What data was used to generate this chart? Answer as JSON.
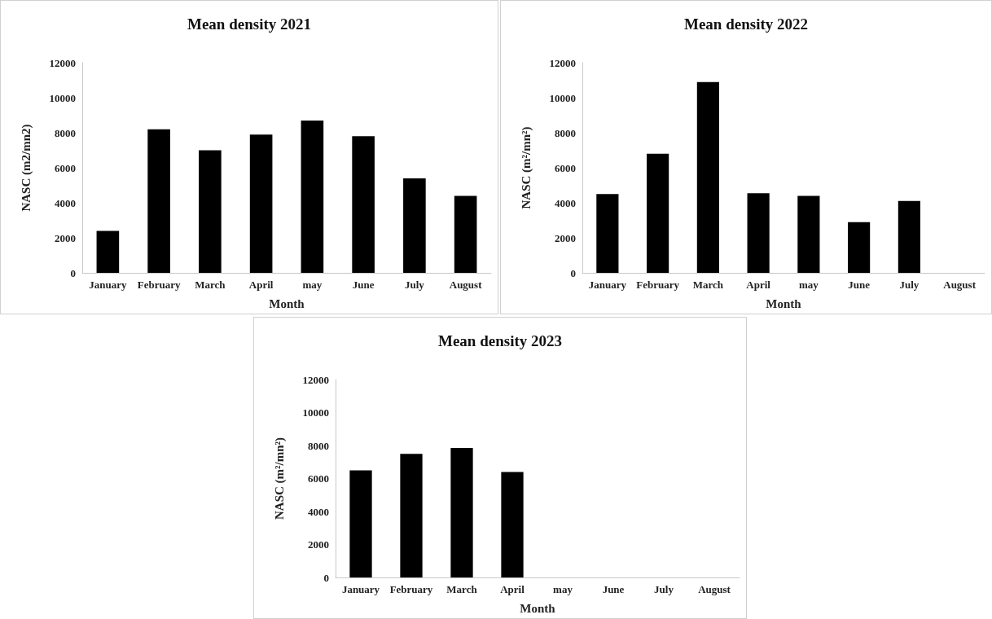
{
  "chart_data": [
    {
      "type": "bar",
      "title": "Mean density 2021",
      "xlabel": "Month",
      "ylabel": "NASC (m2/mn2)",
      "categories": [
        "January",
        "February",
        "March",
        "April",
        "may",
        "June",
        "July",
        "August"
      ],
      "series": [
        {
          "color": "#000000",
          "values": [
            2400,
            8200,
            7000,
            7900,
            8700,
            7800,
            5400,
            4400
          ]
        }
      ],
      "ylim": [
        0,
        12000
      ],
      "yticks": [
        0,
        2000,
        4000,
        6000,
        8000,
        10000,
        12000
      ],
      "grid": false
    },
    {
      "type": "bar",
      "title": "Mean density 2022",
      "xlabel": "Month",
      "ylabel": "NASC (m²/mn²)",
      "categories": [
        "January",
        "February",
        "March",
        "April",
        "may",
        "June",
        "July",
        "August"
      ],
      "series": [
        {
          "color": "#000000",
          "values": [
            4500,
            6800,
            10900,
            4550,
            4400,
            2900,
            4100,
            null
          ]
        }
      ],
      "ylim": [
        0,
        12000
      ],
      "yticks": [
        0,
        2000,
        4000,
        6000,
        8000,
        10000,
        12000
      ],
      "grid": false
    },
    {
      "type": "bar",
      "title": "Mean density 2023",
      "xlabel": "Month",
      "ylabel": "NASC (m²/mn²)",
      "categories": [
        "January",
        "February",
        "March",
        "April",
        "may",
        "June",
        "July",
        "August"
      ],
      "series": [
        {
          "color": "#000000",
          "values": [
            6500,
            7500,
            7850,
            6400,
            null,
            null,
            null,
            null
          ]
        }
      ],
      "ylim": [
        0,
        12000
      ],
      "yticks": [
        0,
        2000,
        4000,
        6000,
        8000,
        10000,
        12000
      ],
      "grid": false
    }
  ]
}
